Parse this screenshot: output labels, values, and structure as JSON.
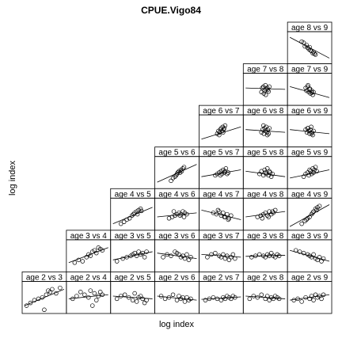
{
  "chart_data": {
    "type": "scatter",
    "title": "CPUE.Vigo84",
    "xlabel": "log index",
    "ylabel": "log index",
    "layout": "lower-triangular pairwise panels with linear fit",
    "panels": [
      {
        "label": "age 8 vs 9",
        "row": 0,
        "col": 6,
        "x": [
          0.3,
          0.35,
          0.38,
          0.42,
          0.45,
          0.48,
          0.5,
          0.52,
          0.55,
          0.58,
          0.6,
          0.62,
          0.65
        ],
        "y": [
          0.72,
          0.68,
          0.55,
          0.6,
          0.5,
          0.45,
          0.52,
          0.4,
          0.38,
          0.3,
          0.35,
          0.28,
          0.25
        ],
        "line": [
          0.88,
          0.12
        ]
      },
      {
        "label": "age 7 vs 8",
        "row": 1,
        "col": 5,
        "x": [
          0.4,
          0.42,
          0.45,
          0.48,
          0.5,
          0.52,
          0.55,
          0.58,
          0.6,
          0.46,
          0.51,
          0.56
        ],
        "y": [
          0.4,
          0.55,
          0.6,
          0.45,
          0.65,
          0.5,
          0.55,
          0.42,
          0.6,
          0.35,
          0.3,
          0.48
        ],
        "line": [
          0.55,
          0.5
        ]
      },
      {
        "label": "age 7 vs 9",
        "row": 1,
        "col": 6,
        "x": [
          0.4,
          0.42,
          0.45,
          0.48,
          0.5,
          0.52,
          0.55,
          0.58,
          0.6,
          0.46,
          0.51,
          0.56
        ],
        "y": [
          0.55,
          0.45,
          0.6,
          0.4,
          0.5,
          0.35,
          0.45,
          0.3,
          0.4,
          0.65,
          0.52,
          0.38
        ],
        "line": [
          0.6,
          0.2
        ]
      },
      {
        "label": "age 6 vs 7",
        "row": 2,
        "col": 4,
        "x": [
          0.4,
          0.43,
          0.46,
          0.48,
          0.5,
          0.52,
          0.54,
          0.56,
          0.58,
          0.6,
          0.45,
          0.55
        ],
        "y": [
          0.4,
          0.5,
          0.45,
          0.55,
          0.6,
          0.5,
          0.65,
          0.55,
          0.6,
          0.7,
          0.35,
          0.45
        ],
        "line": [
          0.2,
          0.65
        ]
      },
      {
        "label": "age 6 vs 8",
        "row": 2,
        "col": 5,
        "x": [
          0.4,
          0.43,
          0.46,
          0.48,
          0.5,
          0.52,
          0.54,
          0.56,
          0.58,
          0.6,
          0.45,
          0.55
        ],
        "y": [
          0.45,
          0.55,
          0.4,
          0.6,
          0.5,
          0.65,
          0.45,
          0.55,
          0.4,
          0.6,
          0.7,
          0.35
        ],
        "line": [
          0.55,
          0.45
        ]
      },
      {
        "label": "age 6 vs 9",
        "row": 2,
        "col": 6,
        "x": [
          0.4,
          0.43,
          0.46,
          0.48,
          0.5,
          0.52,
          0.54,
          0.56,
          0.58,
          0.6,
          0.45,
          0.55
        ],
        "y": [
          0.55,
          0.45,
          0.6,
          0.5,
          0.4,
          0.55,
          0.65,
          0.45,
          0.35,
          0.5,
          0.6,
          0.4
        ],
        "line": [
          0.55,
          0.4
        ]
      },
      {
        "label": "age 5 vs 6",
        "row": 3,
        "col": 3,
        "x": [
          0.35,
          0.4,
          0.45,
          0.48,
          0.5,
          0.52,
          0.55,
          0.58,
          0.6,
          0.62,
          0.65,
          0.68
        ],
        "y": [
          0.2,
          0.3,
          0.35,
          0.4,
          0.45,
          0.5,
          0.55,
          0.5,
          0.6,
          0.55,
          0.65,
          0.7
        ],
        "line": [
          0.15,
          0.8
        ]
      },
      {
        "label": "age 5 vs 7",
        "row": 3,
        "col": 4,
        "x": [
          0.35,
          0.4,
          0.45,
          0.48,
          0.5,
          0.52,
          0.55,
          0.58,
          0.6,
          0.62,
          0.65,
          0.68
        ],
        "y": [
          0.4,
          0.45,
          0.5,
          0.4,
          0.55,
          0.45,
          0.6,
          0.5,
          0.55,
          0.65,
          0.45,
          0.5
        ],
        "line": [
          0.35,
          0.6
        ]
      },
      {
        "label": "age 5 vs 8",
        "row": 3,
        "col": 5,
        "x": [
          0.35,
          0.4,
          0.45,
          0.48,
          0.5,
          0.52,
          0.55,
          0.58,
          0.6,
          0.62,
          0.65,
          0.68
        ],
        "y": [
          0.45,
          0.55,
          0.4,
          0.6,
          0.5,
          0.45,
          0.65,
          0.4,
          0.55,
          0.5,
          0.35,
          0.45
        ],
        "line": [
          0.55,
          0.35
        ]
      },
      {
        "label": "age 5 vs 9",
        "row": 3,
        "col": 6,
        "x": [
          0.35,
          0.4,
          0.45,
          0.48,
          0.5,
          0.52,
          0.55,
          0.58,
          0.6,
          0.62,
          0.65,
          0.68
        ],
        "y": [
          0.35,
          0.45,
          0.5,
          0.4,
          0.6,
          0.55,
          0.45,
          0.65,
          0.5,
          0.6,
          0.7,
          0.55
        ],
        "line": [
          0.3,
          0.6
        ]
      },
      {
        "label": "age 4 vs 5",
        "row": 4,
        "col": 2,
        "x": [
          0.2,
          0.28,
          0.35,
          0.42,
          0.48,
          0.52,
          0.55,
          0.6,
          0.65,
          0.7,
          0.72,
          0.62
        ],
        "y": [
          0.15,
          0.22,
          0.3,
          0.35,
          0.45,
          0.5,
          0.55,
          0.6,
          0.65,
          0.7,
          0.62,
          0.5
        ],
        "line": [
          0.15,
          0.75
        ]
      },
      {
        "label": "age 4 vs 6",
        "row": 4,
        "col": 3,
        "x": [
          0.3,
          0.38,
          0.45,
          0.5,
          0.55,
          0.6,
          0.65,
          0.7,
          0.75,
          0.42,
          0.58,
          0.68
        ],
        "y": [
          0.35,
          0.4,
          0.45,
          0.5,
          0.55,
          0.5,
          0.6,
          0.55,
          0.5,
          0.6,
          0.45,
          0.4
        ],
        "line": [
          0.4,
          0.55
        ]
      },
      {
        "label": "age 4 vs 7",
        "row": 4,
        "col": 4,
        "x": [
          0.3,
          0.38,
          0.45,
          0.5,
          0.55,
          0.6,
          0.65,
          0.7,
          0.75,
          0.42,
          0.58,
          0.68
        ],
        "y": [
          0.55,
          0.5,
          0.6,
          0.45,
          0.55,
          0.4,
          0.5,
          0.35,
          0.45,
          0.65,
          0.4,
          0.3
        ],
        "line": [
          0.65,
          0.3
        ]
      },
      {
        "label": "age 4 vs 8",
        "row": 4,
        "col": 5,
        "x": [
          0.3,
          0.38,
          0.45,
          0.5,
          0.55,
          0.6,
          0.65,
          0.7,
          0.75,
          0.42,
          0.58,
          0.68
        ],
        "y": [
          0.4,
          0.45,
          0.5,
          0.55,
          0.45,
          0.6,
          0.5,
          0.55,
          0.65,
          0.35,
          0.4,
          0.6
        ],
        "line": [
          0.4,
          0.6
        ]
      },
      {
        "label": "age 4 vs 9",
        "row": 4,
        "col": 6,
        "x": [
          0.3,
          0.38,
          0.45,
          0.5,
          0.55,
          0.6,
          0.65,
          0.7,
          0.75,
          0.42,
          0.58,
          0.68
        ],
        "y": [
          0.15,
          0.25,
          0.35,
          0.4,
          0.5,
          0.6,
          0.7,
          0.75,
          0.8,
          0.3,
          0.55,
          0.65
        ],
        "line": [
          0.05,
          0.85
        ]
      },
      {
        "label": "age 3 vs 4",
        "row": 5,
        "col": 1,
        "x": [
          0.15,
          0.25,
          0.35,
          0.45,
          0.5,
          0.55,
          0.6,
          0.65,
          0.7,
          0.75,
          0.8,
          0.85
        ],
        "y": [
          0.25,
          0.35,
          0.3,
          0.45,
          0.55,
          0.5,
          0.65,
          0.7,
          0.6,
          0.8,
          0.75,
          0.7
        ],
        "line": [
          0.25,
          0.8
        ]
      },
      {
        "label": "age 3 vs 5",
        "row": 5,
        "col": 2,
        "x": [
          0.1,
          0.25,
          0.35,
          0.45,
          0.5,
          0.55,
          0.6,
          0.65,
          0.7,
          0.75,
          0.8,
          0.85
        ],
        "y": [
          0.3,
          0.4,
          0.45,
          0.5,
          0.55,
          0.6,
          0.5,
          0.65,
          0.55,
          0.6,
          0.45,
          0.65
        ],
        "line": [
          0.35,
          0.65
        ]
      },
      {
        "label": "age 3 vs 6",
        "row": 5,
        "col": 3,
        "x": [
          0.15,
          0.25,
          0.35,
          0.45,
          0.5,
          0.55,
          0.6,
          0.65,
          0.7,
          0.75,
          0.8,
          0.85
        ],
        "y": [
          0.45,
          0.55,
          0.5,
          0.65,
          0.6,
          0.55,
          0.45,
          0.5,
          0.4,
          0.55,
          0.35,
          0.45
        ],
        "line": [
          0.6,
          0.4
        ]
      },
      {
        "label": "age 3 vs 7",
        "row": 5,
        "col": 4,
        "x": [
          0.15,
          0.25,
          0.35,
          0.45,
          0.5,
          0.55,
          0.6,
          0.65,
          0.7,
          0.75,
          0.8,
          0.85
        ],
        "y": [
          0.45,
          0.55,
          0.6,
          0.5,
          0.45,
          0.55,
          0.4,
          0.5,
          0.35,
          0.45,
          0.55,
          0.4
        ],
        "line": [
          0.55,
          0.45
        ]
      },
      {
        "label": "age 3 vs 8",
        "row": 5,
        "col": 5,
        "x": [
          0.15,
          0.25,
          0.35,
          0.45,
          0.5,
          0.55,
          0.6,
          0.65,
          0.7,
          0.75,
          0.8,
          0.85
        ],
        "y": [
          0.45,
          0.5,
          0.55,
          0.5,
          0.45,
          0.55,
          0.5,
          0.6,
          0.5,
          0.45,
          0.55,
          0.5
        ],
        "line": [
          0.48,
          0.52
        ]
      },
      {
        "label": "age 3 vs 9",
        "row": 5,
        "col": 6,
        "x": [
          0.15,
          0.25,
          0.35,
          0.45,
          0.5,
          0.55,
          0.6,
          0.65,
          0.7,
          0.75,
          0.8,
          0.85
        ],
        "y": [
          0.7,
          0.65,
          0.6,
          0.55,
          0.5,
          0.45,
          0.55,
          0.4,
          0.35,
          0.45,
          0.3,
          0.4
        ],
        "line": [
          0.7,
          0.3
        ]
      },
      {
        "label": "age 2 vs 3",
        "row": 6,
        "col": 0,
        "x": [
          0.05,
          0.15,
          0.25,
          0.35,
          0.45,
          0.5,
          0.55,
          0.6,
          0.65,
          0.7,
          0.8,
          0.9
        ],
        "y": [
          0.2,
          0.3,
          0.4,
          0.45,
          0.5,
          0.05,
          0.6,
          0.75,
          0.7,
          0.8,
          0.65,
          0.85
        ],
        "line": [
          0.2,
          0.8
        ]
      },
      {
        "label": "age 2 vs 4",
        "row": 6,
        "col": 1,
        "x": [
          0.1,
          0.2,
          0.3,
          0.4,
          0.5,
          0.55,
          0.6,
          0.65,
          0.7,
          0.75,
          0.8,
          0.85
        ],
        "y": [
          0.45,
          0.55,
          0.7,
          0.6,
          0.5,
          0.75,
          0.2,
          0.65,
          0.4,
          0.55,
          0.7,
          0.6
        ],
        "line": [
          0.45,
          0.6
        ]
      },
      {
        "label": "age 2 vs 5",
        "row": 6,
        "col": 2,
        "x": [
          0.1,
          0.2,
          0.3,
          0.4,
          0.5,
          0.55,
          0.6,
          0.65,
          0.7,
          0.75,
          0.8,
          0.85
        ],
        "y": [
          0.45,
          0.55,
          0.6,
          0.5,
          0.4,
          0.65,
          0.35,
          0.5,
          0.55,
          0.45,
          0.3,
          0.4
        ],
        "line": [
          0.55,
          0.45
        ]
      },
      {
        "label": "age 2 vs 6",
        "row": 6,
        "col": 3,
        "x": [
          0.1,
          0.2,
          0.3,
          0.4,
          0.5,
          0.55,
          0.6,
          0.65,
          0.7,
          0.75,
          0.8,
          0.85
        ],
        "y": [
          0.55,
          0.45,
          0.5,
          0.6,
          0.4,
          0.55,
          0.45,
          0.5,
          0.35,
          0.5,
          0.4,
          0.45
        ],
        "line": [
          0.55,
          0.4
        ]
      },
      {
        "label": "age 2 vs 7",
        "row": 6,
        "col": 4,
        "x": [
          0.1,
          0.2,
          0.3,
          0.4,
          0.5,
          0.55,
          0.6,
          0.65,
          0.7,
          0.75,
          0.8,
          0.85
        ],
        "y": [
          0.4,
          0.45,
          0.5,
          0.45,
          0.4,
          0.5,
          0.45,
          0.55,
          0.5,
          0.45,
          0.55,
          0.5
        ],
        "line": [
          0.43,
          0.52
        ]
      },
      {
        "label": "age 2 vs 8",
        "row": 6,
        "col": 5,
        "x": [
          0.1,
          0.2,
          0.3,
          0.4,
          0.5,
          0.55,
          0.6,
          0.65,
          0.7,
          0.75,
          0.8,
          0.85
        ],
        "y": [
          0.45,
          0.55,
          0.5,
          0.6,
          0.45,
          0.55,
          0.4,
          0.5,
          0.45,
          0.55,
          0.5,
          0.45
        ],
        "line": [
          0.55,
          0.45
        ]
      },
      {
        "label": "age 2 vs 9",
        "row": 6,
        "col": 6,
        "x": [
          0.1,
          0.2,
          0.3,
          0.4,
          0.5,
          0.55,
          0.6,
          0.65,
          0.7,
          0.75,
          0.8,
          0.85
        ],
        "y": [
          0.4,
          0.45,
          0.35,
          0.5,
          0.45,
          0.55,
          0.4,
          0.6,
          0.5,
          0.55,
          0.45,
          0.6
        ],
        "line": [
          0.4,
          0.6
        ]
      }
    ]
  }
}
